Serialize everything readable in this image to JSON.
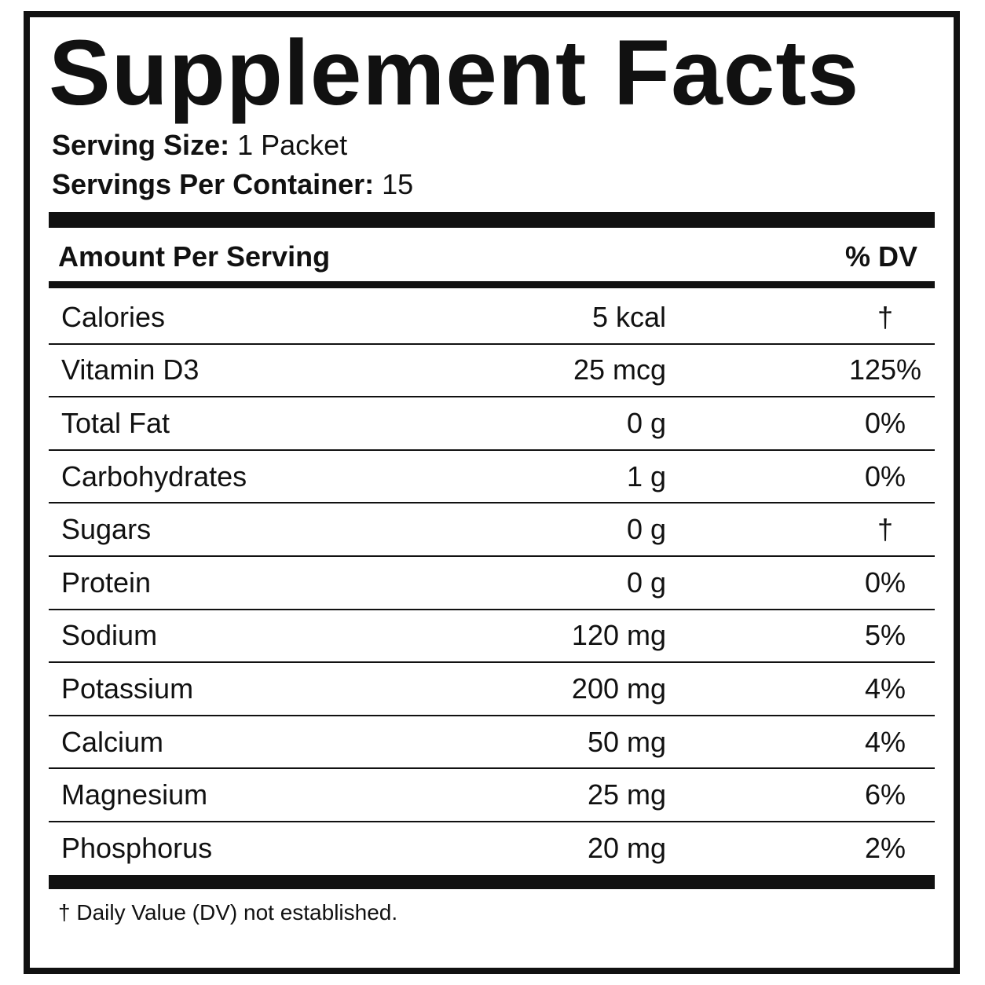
{
  "header": {
    "title": "Supplement Facts",
    "serving_size": {
      "label": "Serving Size:",
      "value": "1 Packet"
    },
    "servings_per_container": {
      "label": "Servings Per Container:",
      "value": "15"
    }
  },
  "table": {
    "columns": [
      "Amount Per Serving",
      "% DV"
    ],
    "rows": [
      [
        "Calories",
        "5 kcal",
        "†"
      ],
      [
        "Vitamin D3",
        "25 mcg",
        "125%"
      ],
      [
        "Total Fat",
        "0 g",
        "0%"
      ],
      [
        "Carbohydrates",
        "1 g",
        "0%"
      ],
      [
        "Sugars",
        "0 g",
        "†"
      ],
      [
        "Protein",
        "0 g",
        "0%"
      ],
      [
        "Sodium",
        "120 mg",
        "5%"
      ],
      [
        "Potassium",
        "200 mg",
        "4%"
      ],
      [
        "Calcium",
        "50 mg",
        "4%"
      ],
      [
        "Magnesium",
        "25 mg",
        "6%"
      ],
      [
        "Phosphorus",
        "20 mg",
        "2%"
      ]
    ]
  },
  "footnote": "† Daily Value (DV) not established."
}
